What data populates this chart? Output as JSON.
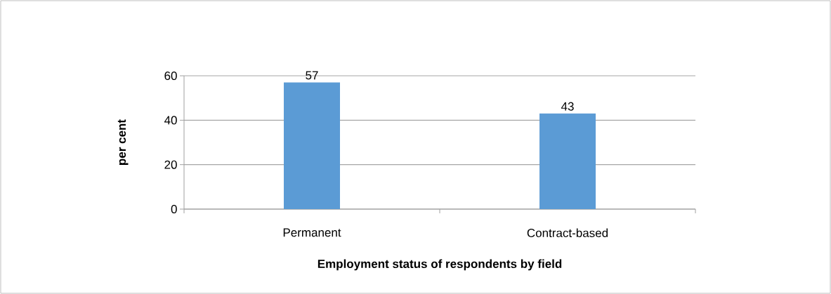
{
  "chart_data": {
    "type": "bar",
    "xlabel": "Employment status of respondents by field",
    "ylabel": "per cent",
    "categories": [
      "Permanent",
      "Contract-based"
    ],
    "values": [
      57,
      43
    ],
    "color": "#5b9bd5",
    "ylim": [
      0,
      60
    ],
    "yticks": [
      0,
      20,
      40,
      60
    ],
    "grid": "y",
    "data_labels": true
  }
}
